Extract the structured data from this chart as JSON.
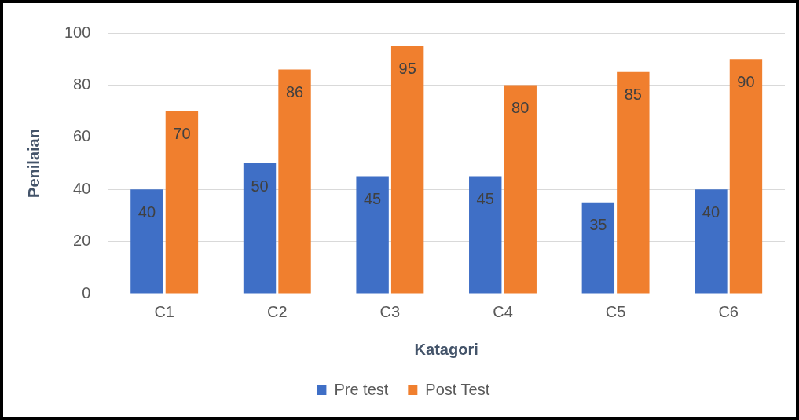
{
  "chart_data": {
    "type": "bar",
    "xlabel": "Katagori",
    "ylabel": "Penilaian",
    "categories": [
      "C1",
      "C2",
      "C3",
      "C4",
      "C5",
      "C6"
    ],
    "series": [
      {
        "name": "Pre test",
        "color": "#3f6fc6",
        "values": [
          40,
          50,
          45,
          45,
          35,
          40
        ]
      },
      {
        "name": "Post Test",
        "color": "#f07f2e",
        "values": [
          70,
          86,
          95,
          80,
          85,
          90
        ]
      }
    ],
    "ylim": [
      0,
      100
    ],
    "yticks": [
      0,
      20,
      40,
      60,
      80,
      100
    ],
    "grid": "y",
    "legend": "bottom",
    "data_labels": true
  }
}
